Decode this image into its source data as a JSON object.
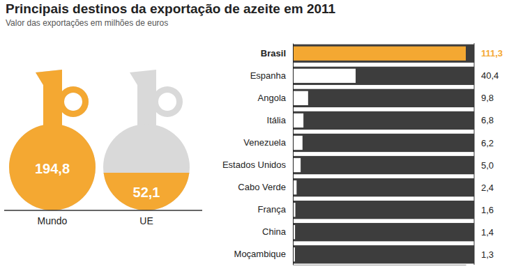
{
  "chart_data": [
    {
      "type": "pictorial",
      "title": "Principais destinos da exportação de azeite em 2011",
      "subtitle": "Valor das exportações em milhões de euros",
      "categories": [
        "Mundo",
        "UE"
      ],
      "values": [
        194.8,
        52.1
      ],
      "value_labels": [
        "194,8",
        "52,1"
      ],
      "data_labels": true,
      "color": "#f4a832",
      "ylim": [
        0,
        194.8
      ],
      "tick_labels": false
    },
    {
      "type": "bar",
      "orientation": "horizontal",
      "categories": [
        "Brasil",
        "Espanha",
        "Angola",
        "Itália",
        "Venezuela",
        "Estados Unidos",
        "Cabo Verde",
        "França",
        "China",
        "Moçambique"
      ],
      "values": [
        111.3,
        40.4,
        9.8,
        6.8,
        6.2,
        5.0,
        2.4,
        1.6,
        1.4,
        1.3
      ],
      "value_labels": [
        "111,3",
        "40,4",
        "9,8",
        "6,8",
        "6,2",
        "5,0",
        "2,4",
        "1,6",
        "1,4",
        "1,3"
      ],
      "data_labels": true,
      "colors": [
        "#f4a832",
        "#ffffff",
        "#ffffff",
        "#ffffff",
        "#ffffff",
        "#ffffff",
        "#ffffff",
        "#ffffff",
        "#ffffff",
        "#ffffff"
      ],
      "xlim": [
        0,
        111.3
      ],
      "tick_labels": "y"
    }
  ]
}
